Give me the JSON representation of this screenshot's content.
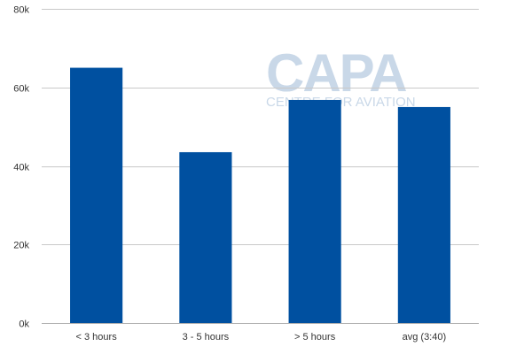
{
  "chart_data": {
    "type": "bar",
    "categories": [
      "< 3 hours",
      "3 - 5 hours",
      "> 5 hours",
      "avg (3:40)"
    ],
    "values": [
      65000,
      43500,
      56800,
      55000
    ],
    "ylim": [
      0,
      80000
    ],
    "yticks": [
      0,
      20000,
      40000,
      60000,
      80000
    ],
    "ytick_labels": [
      "0k",
      "20k",
      "40k",
      "60k",
      "80k"
    ],
    "title": "",
    "xlabel": "",
    "ylabel": "",
    "grid": true,
    "bar_color": "#0050a0"
  },
  "watermark": {
    "main": "CAPA",
    "sub": "CENTRE FOR AVIATION"
  }
}
